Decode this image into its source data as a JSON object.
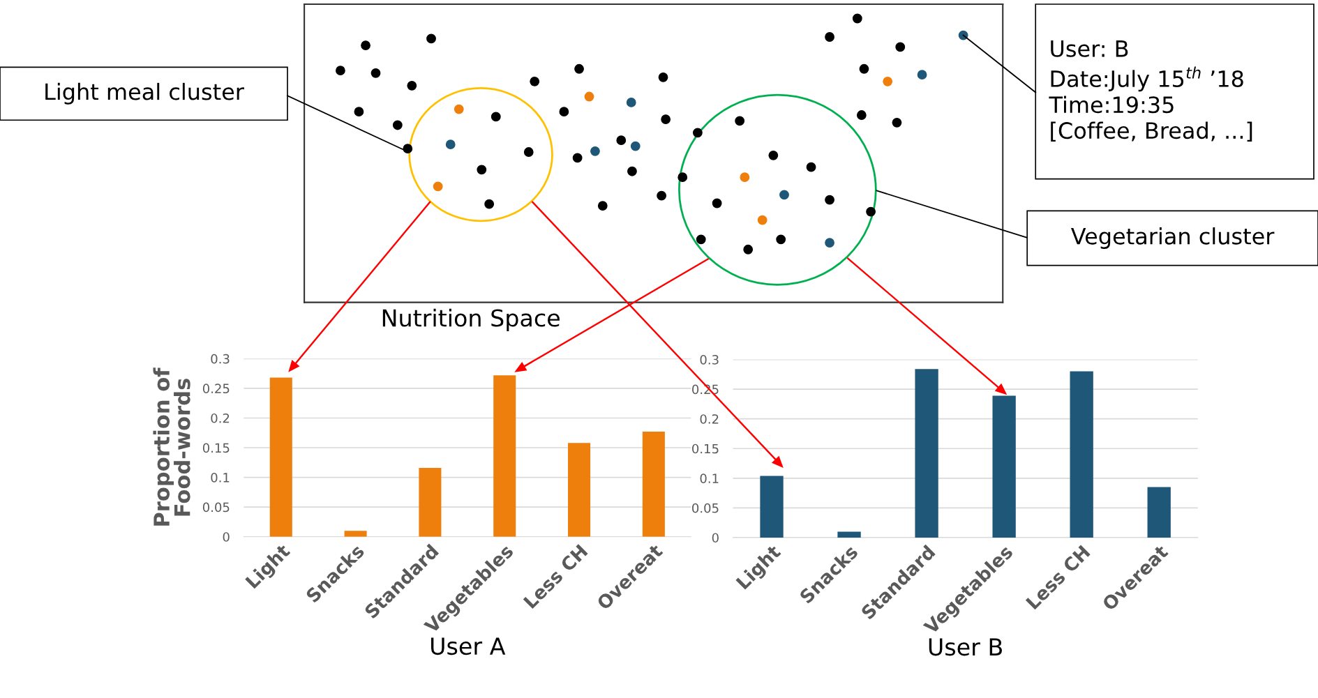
{
  "chart_data": [
    {
      "type": "other",
      "title": "Nutrition Space",
      "annotations": [
        "Light meal cluster",
        "Vegetarian cluster",
        "User: B\nDate:July 15$^{th}$ ’18\nTime:19:35\n[Coffee, Bread, ...]"
      ]
    },
    {
      "type": "bar",
      "xlabel": "User A",
      "ylabel": "Proportion of\nFood-words",
      "categories": [
        "Light",
        "Snacks",
        "Standard",
        "Vegetables",
        "Less CH",
        "Overeat"
      ],
      "values": [
        0.268,
        0.01,
        0.116,
        0.272,
        0.158,
        0.177
      ],
      "color": "#ef7f0c",
      "ylim": [
        0,
        0.3
      ],
      "yticks": [
        0,
        0.05,
        0.1,
        0.15,
        0.2,
        0.25,
        0.3
      ],
      "grid": "y"
    },
    {
      "type": "bar",
      "xlabel": "User B",
      "categories": [
        "Light",
        "Snacks",
        "Standard",
        "Vegetables",
        "Less CH",
        "Overeat"
      ],
      "values": [
        0.104,
        0.01,
        0.284,
        0.239,
        0.28,
        0.085
      ],
      "color": "#1f5779",
      "ylim": [
        0,
        0.3
      ],
      "yticks": [
        0,
        0.05,
        0.1,
        0.15,
        0.2,
        0.25,
        0.3
      ],
      "grid": "y"
    }
  ]
}
